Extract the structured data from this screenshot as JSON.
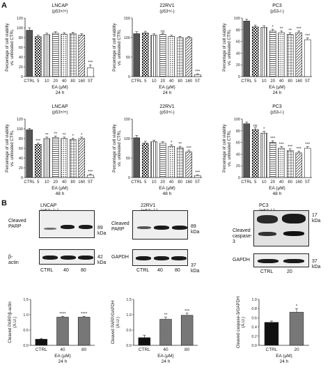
{
  "panel_a_letter": "A",
  "panel_b_letter": "B",
  "y_axis_label_line1": "Percentage of cell viability",
  "y_axis_label_line2": "vs. untreated CTRL",
  "x_axis_label": "EA (μM)",
  "bar_categories": [
    "CTRL",
    "5",
    "10",
    "20",
    "40",
    "80",
    "160",
    "ST"
  ],
  "chart_data": [
    {
      "type": "bar",
      "title": "LNCAP",
      "subtitle": "(p53+/+)",
      "time": "24 h",
      "categories": [
        "CTRL",
        "5",
        "10",
        "20",
        "40",
        "80",
        "160",
        "ST"
      ],
      "values": [
        95,
        82,
        86,
        89,
        87,
        88,
        85,
        18
      ],
      "errors": [
        5,
        3,
        3,
        3,
        3,
        3,
        3,
        6
      ],
      "sig": [
        "",
        "",
        "",
        "",
        "",
        "",
        "",
        "***"
      ],
      "ylim": [
        0,
        120
      ],
      "yticks": [
        0,
        20,
        40,
        60,
        80,
        100,
        120
      ]
    },
    {
      "type": "bar",
      "title": "22RV1",
      "subtitle": "(p53+/-)",
      "time": "24 h",
      "categories": [
        "CTRL",
        "5",
        "10",
        "20",
        "40",
        "80",
        "160",
        "ST"
      ],
      "values": [
        110,
        112,
        106,
        108,
        103,
        100,
        100,
        5
      ],
      "errors": [
        5,
        4,
        4,
        3,
        3,
        3,
        3,
        2
      ],
      "sig": [
        "",
        "",
        "",
        "ns",
        "",
        "",
        "",
        "***"
      ],
      "ylim": [
        0,
        150
      ],
      "yticks": [
        0,
        50,
        100,
        150
      ]
    },
    {
      "type": "bar",
      "title": "PC3",
      "subtitle": "(p53-/-)",
      "time": "24 h",
      "categories": [
        "CTRL",
        "5",
        "10",
        "20",
        "40",
        "80",
        "160",
        "ST"
      ],
      "values": [
        95,
        85,
        84,
        78,
        75,
        72,
        75,
        63
      ],
      "errors": [
        3,
        3,
        3,
        3,
        3,
        3,
        3,
        3
      ],
      "sig": [
        "",
        "",
        "",
        "*",
        "**",
        "**",
        "***",
        "***"
      ],
      "ylim": [
        0,
        100
      ],
      "yticks": [
        0,
        20,
        40,
        60,
        80,
        100
      ]
    },
    {
      "type": "bar",
      "title": "LNCAP",
      "subtitle": "(p53+/+)",
      "time": "48 h",
      "categories": [
        "CTRL",
        "5",
        "10",
        "20",
        "40",
        "80",
        "160",
        "ST"
      ],
      "values": [
        98,
        68,
        80,
        82,
        80,
        78,
        80,
        5
      ],
      "errors": [
        3,
        3,
        3,
        3,
        3,
        3,
        3,
        2
      ],
      "sig": [
        "",
        "***",
        "**",
        "**",
        "**",
        "*",
        "*",
        "***"
      ],
      "ylim": [
        0,
        120
      ],
      "yticks": [
        0,
        20,
        40,
        60,
        80,
        100,
        120
      ]
    },
    {
      "type": "bar",
      "title": "22RV1",
      "subtitle": "(p53+/-)",
      "time": "48 h",
      "categories": [
        "CTRL",
        "5",
        "10",
        "20",
        "40",
        "80",
        "160",
        "ST"
      ],
      "values": [
        102,
        88,
        92,
        88,
        80,
        76,
        66,
        5
      ],
      "errors": [
        6,
        5,
        4,
        4,
        4,
        4,
        4,
        2
      ],
      "sig": [
        "",
        "",
        "",
        "",
        "*",
        "**",
        "***",
        "***"
      ],
      "ylim": [
        0,
        150
      ],
      "yticks": [
        0,
        50,
        100,
        150
      ]
    },
    {
      "type": "bar",
      "title": "PC3",
      "subtitle": "(p53-/-)",
      "time": "48 h",
      "categories": [
        "CTRL",
        "5",
        "10",
        "20",
        "40",
        "80",
        "160",
        "ST"
      ],
      "values": [
        92,
        82,
        76,
        60,
        50,
        46,
        42,
        50
      ],
      "errors": [
        3,
        3,
        3,
        3,
        3,
        3,
        3,
        3
      ],
      "sig": [
        "",
        "ns",
        "*",
        "***",
        "***",
        "***",
        "***",
        "***"
      ],
      "ylim": [
        0,
        100
      ],
      "yticks": [
        0,
        20,
        40,
        60,
        80,
        100
      ]
    },
    {
      "type": "bar",
      "title": "",
      "ylabel_line1": "Cleaved PARP/β-actin",
      "ylabel_line2": "(A.U.)",
      "xlabel": "EA (μM)",
      "time": "24 h",
      "categories": [
        "CTRL",
        "40",
        "80"
      ],
      "values": [
        0.2,
        0.92,
        0.92
      ],
      "errors": [
        0.02,
        0.03,
        0.03
      ],
      "sig": [
        "",
        "****",
        "****"
      ],
      "ylim": [
        0,
        1.5
      ],
      "yticks": [
        0,
        0.5,
        1.0,
        1.5
      ],
      "tick_labels": [
        "0.0",
        "0.5",
        "1.0",
        "1.5"
      ],
      "colors": [
        "#111111",
        "#777777",
        "#777777"
      ]
    },
    {
      "type": "bar",
      "title": "",
      "ylabel_line1": "Cleaved PARP/GAPDH",
      "ylabel_line2": "(A.U.)",
      "xlabel": "EA (μM)",
      "time": "24 h",
      "categories": [
        "CTRL",
        "40",
        "80"
      ],
      "values": [
        0.25,
        0.85,
        0.98
      ],
      "errors": [
        0.08,
        0.07,
        0.07
      ],
      "sig": [
        "",
        "**",
        "***"
      ],
      "ylim": [
        0,
        1.5
      ],
      "yticks": [
        0,
        0.5,
        1.0,
        1.5
      ],
      "tick_labels": [
        "0.0",
        "0.5",
        "1.0",
        "1.5"
      ],
      "colors": [
        "#111111",
        "#777777",
        "#777777"
      ]
    },
    {
      "type": "bar",
      "title": "",
      "ylabel_line1": "Cleaved caspase-3/GAPDH",
      "ylabel_line2": "(A.U.)",
      "xlabel": "EA (μM)",
      "time": "24 h",
      "categories": [
        "CTRL",
        "20"
      ],
      "values": [
        0.5,
        0.72
      ],
      "errors": [
        0.03,
        0.08
      ],
      "sig": [
        "",
        "*"
      ],
      "ylim": [
        0,
        1.0
      ],
      "yticks": [
        0,
        0.2,
        0.4,
        0.6,
        0.8,
        1.0
      ],
      "tick_labels": [
        "0.0",
        "0.2",
        "0.4",
        "0.6",
        "0.8",
        "1.0"
      ],
      "colors": [
        "#111111",
        "#777777"
      ]
    }
  ],
  "blots": {
    "lncap_title": "LNCAP (p53+/+)",
    "lncap_row1_label_l1": "Cleaved",
    "lncap_row1_label_l2": "PARP",
    "lncap_row1_kda": "89 kDa",
    "lncap_row2_label": "β-actin",
    "lncap_row2_kda": "42 kDa",
    "lncap_lanes": [
      "CTRL",
      "40",
      "80"
    ],
    "rv1_title": "22RV1 (p53+/-)",
    "rv1_row1_label_l1": "Cleaved",
    "rv1_row1_label_l2": "PARP",
    "rv1_row1_kda": "89 kDa",
    "rv1_row2_label": "GAPDH",
    "rv1_row2_kda": "37 kDa",
    "rv1_lanes": [
      "CTRL",
      "40",
      "80"
    ],
    "pc3_title": "PC3 (p53-/-)",
    "pc3_row1_label_l1": "Cleaved",
    "pc3_row1_label_l2": "caspase-3",
    "pc3_row1_kda_l1": "17",
    "pc3_row1_kda_l2": "kDa",
    "pc3_row2_label": "GAPDH",
    "pc3_row2_kda": "37 kDa",
    "pc3_lanes": [
      "CTRL",
      "20"
    ]
  }
}
